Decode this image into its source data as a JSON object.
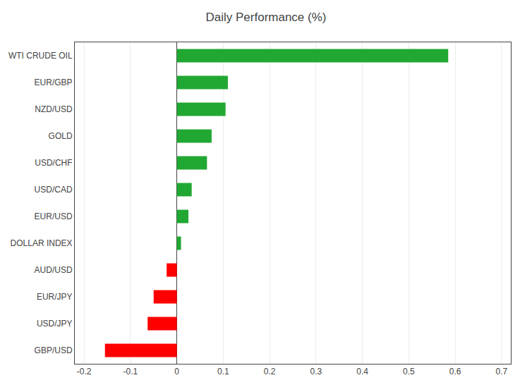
{
  "chart_data": {
    "type": "bar",
    "orientation": "horizontal",
    "title": "Daily Performance (%)",
    "categories": [
      "WTI CRUDE OIL",
      "EUR/GBP",
      "NZD/USD",
      "GOLD",
      "USD/CHF",
      "USD/CAD",
      "EUR/USD",
      "DOLLAR INDEX",
      "AUD/USD",
      "EUR/JPY",
      "USD/JPY",
      "GBP/USD"
    ],
    "values": [
      0.585,
      0.11,
      0.105,
      0.075,
      0.065,
      0.032,
      0.025,
      0.009,
      -0.022,
      -0.05,
      -0.063,
      -0.155
    ],
    "colors": [
      "#21a833",
      "#21a833",
      "#21a833",
      "#21a833",
      "#21a833",
      "#21a833",
      "#21a833",
      "#21a833",
      "#ff0000",
      "#ff0000",
      "#ff0000",
      "#ff0000"
    ],
    "xlim": [
      -0.22,
      0.72
    ],
    "xticks": [
      -0.2,
      -0.1,
      0,
      0.1,
      0.2,
      0.3,
      0.4,
      0.5,
      0.6,
      0.7
    ],
    "grid": true
  }
}
